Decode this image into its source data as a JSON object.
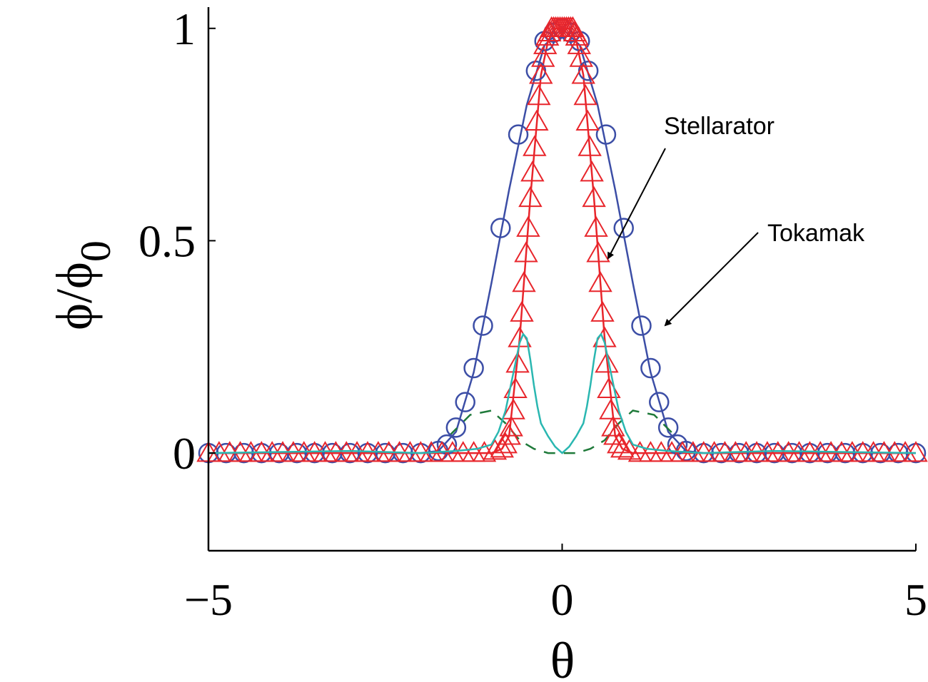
{
  "chart_data": {
    "type": "line",
    "xlabel": "θ",
    "ylabel": "ϕ/ϕ",
    "ylabel_subscript": "0",
    "xlim": [
      -5,
      5
    ],
    "ylim": [
      -0.23,
      1.05
    ],
    "xticks": [
      -5,
      0,
      5
    ],
    "xtick_labels": [
      "−5",
      "0",
      "5"
    ],
    "yticks": [
      0,
      0.5,
      1
    ],
    "ytick_labels": [
      "0",
      "0.5",
      "1"
    ],
    "grid": false,
    "colors": {
      "tokamak": "#3c4ea6",
      "stellarator": "#e8252b",
      "cyan": "#2ab7b1",
      "green_dashed": "#1f7a3a"
    },
    "series": [
      {
        "key": "tokamak_circles",
        "style": "circle-markers",
        "color": "#3c4ea6",
        "x": [
          -5,
          -4.75,
          -4.5,
          -4.25,
          -4,
          -3.75,
          -3.5,
          -3.25,
          -3,
          -2.75,
          -2.5,
          -2.25,
          -2,
          -1.75,
          -1.63,
          -1.5,
          -1.37,
          -1.25,
          -1.12,
          -0.87,
          -0.62,
          -0.37,
          -0.25,
          -0.12,
          0,
          0.12,
          0.25,
          0.37,
          0.62,
          0.87,
          1.12,
          1.25,
          1.37,
          1.5,
          1.63,
          1.75,
          2,
          2.25,
          2.5,
          2.75,
          3,
          3.25,
          3.5,
          3.75,
          4,
          4.25,
          4.5,
          4.75,
          5
        ],
        "y": [
          0,
          0,
          0,
          0,
          0,
          0,
          0,
          0,
          0,
          0,
          0,
          0,
          0,
          0.005,
          0.02,
          0.06,
          0.12,
          0.2,
          0.3,
          0.53,
          0.75,
          0.9,
          0.97,
          0.99,
          1.0,
          0.99,
          0.97,
          0.9,
          0.75,
          0.53,
          0.3,
          0.2,
          0.12,
          0.06,
          0.02,
          0.005,
          0,
          0,
          0,
          0,
          0,
          0,
          0,
          0,
          0,
          0,
          0,
          0,
          0
        ]
      },
      {
        "key": "tokamak_line",
        "style": "line",
        "color": "#3c4ea6",
        "x": [
          -5,
          -2,
          -1.75,
          -1.5,
          -1.25,
          -1,
          -0.75,
          -0.5,
          -0.25,
          0,
          0.25,
          0.5,
          0.75,
          1,
          1.25,
          1.5,
          1.75,
          2,
          5
        ],
        "y": [
          0,
          0,
          0.005,
          0.05,
          0.19,
          0.4,
          0.62,
          0.82,
          0.96,
          1.0,
          0.96,
          0.82,
          0.62,
          0.4,
          0.19,
          0.05,
          0.005,
          0,
          0
        ]
      },
      {
        "key": "stellarator_triangles",
        "style": "triangle-markers",
        "color": "#e8252b",
        "x": [
          -5,
          -4.85,
          -4.7,
          -4.55,
          -4.4,
          -4.25,
          -4.1,
          -3.95,
          -3.8,
          -3.65,
          -3.5,
          -3.35,
          -3.2,
          -3.05,
          -2.9,
          -2.75,
          -2.6,
          -2.45,
          -2.3,
          -2.15,
          -2.0,
          -1.85,
          -1.7,
          -1.55,
          -1.4,
          -1.25,
          -1.1,
          -0.95,
          -0.85,
          -0.8,
          -0.75,
          -0.72,
          -0.69,
          -0.66,
          -0.63,
          -0.6,
          -0.57,
          -0.54,
          -0.51,
          -0.48,
          -0.45,
          -0.42,
          -0.39,
          -0.36,
          -0.33,
          -0.3,
          -0.27,
          -0.24,
          -0.21,
          -0.18,
          -0.15,
          -0.12,
          -0.09,
          -0.06,
          -0.03,
          0,
          0.03,
          0.06,
          0.09,
          0.12,
          0.15,
          0.18,
          0.21,
          0.24,
          0.27,
          0.3,
          0.33,
          0.36,
          0.39,
          0.42,
          0.45,
          0.48,
          0.51,
          0.54,
          0.57,
          0.6,
          0.63,
          0.66,
          0.69,
          0.72,
          0.75,
          0.8,
          0.85,
          0.95,
          1.1,
          1.25,
          1.4,
          1.55,
          1.7,
          1.85,
          2.0,
          2.15,
          2.3,
          2.45,
          2.6,
          2.75,
          2.9,
          3.05,
          3.2,
          3.35,
          3.5,
          3.65,
          3.8,
          3.95,
          4.1,
          4.25,
          4.4,
          4.55,
          4.7,
          4.85,
          5
        ],
        "y": [
          0,
          0,
          0,
          0,
          0,
          0,
          0,
          0,
          0,
          0,
          0,
          0,
          0,
          0,
          0,
          0,
          0,
          0,
          0,
          0,
          0,
          0,
          0,
          0,
          0,
          0,
          0,
          0.005,
          0.01,
          0.02,
          0.04,
          0.06,
          0.1,
          0.15,
          0.21,
          0.27,
          0.33,
          0.4,
          0.47,
          0.53,
          0.6,
          0.66,
          0.72,
          0.78,
          0.84,
          0.89,
          0.93,
          0.96,
          0.98,
          0.99,
          1.0,
          1.0,
          1.0,
          1.0,
          1.0,
          1.0,
          1.0,
          1.0,
          1.0,
          1.0,
          1.0,
          0.99,
          0.98,
          0.96,
          0.93,
          0.89,
          0.84,
          0.78,
          0.72,
          0.66,
          0.6,
          0.53,
          0.47,
          0.4,
          0.33,
          0.27,
          0.21,
          0.15,
          0.1,
          0.06,
          0.04,
          0.02,
          0.01,
          0.005,
          0,
          0,
          0,
          0,
          0,
          0,
          0,
          0,
          0,
          0,
          0,
          0,
          0,
          0,
          0,
          0,
          0,
          0,
          0,
          0,
          0,
          0,
          0,
          0,
          0,
          0,
          0
        ]
      },
      {
        "key": "stellarator_line",
        "style": "line",
        "color": "#e8252b",
        "x": [
          -5,
          -1.0,
          -0.85,
          -0.75,
          -0.6,
          -0.45,
          -0.3,
          -0.2,
          -0.1,
          0,
          0.1,
          0.2,
          0.3,
          0.45,
          0.6,
          0.75,
          0.85,
          1.0,
          5
        ],
        "y": [
          0,
          0,
          0.01,
          0.04,
          0.27,
          0.6,
          0.89,
          0.97,
          1.0,
          1.0,
          1.0,
          0.97,
          0.89,
          0.6,
          0.27,
          0.04,
          0.01,
          0,
          0
        ]
      },
      {
        "key": "cyan_curve",
        "style": "line",
        "color": "#2ab7b1",
        "x": [
          -5,
          -3,
          -2,
          -1.5,
          -1.2,
          -1.0,
          -0.9,
          -0.8,
          -0.7,
          -0.6,
          -0.55,
          -0.5,
          -0.45,
          -0.4,
          -0.35,
          -0.3,
          -0.2,
          -0.1,
          0,
          0.1,
          0.2,
          0.3,
          0.35,
          0.4,
          0.45,
          0.5,
          0.55,
          0.6,
          0.7,
          0.8,
          0.9,
          1.0,
          1.2,
          1.5,
          2,
          3,
          5
        ],
        "y": [
          0,
          0.005,
          0.0,
          0.005,
          0.01,
          0.02,
          0.05,
          0.1,
          0.18,
          0.26,
          0.28,
          0.27,
          0.22,
          0.16,
          0.11,
          0.07,
          0.04,
          0.015,
          0.0,
          0.015,
          0.04,
          0.07,
          0.11,
          0.16,
          0.22,
          0.27,
          0.28,
          0.26,
          0.18,
          0.1,
          0.05,
          0.02,
          0.01,
          0.005,
          0.0,
          0.005,
          0
        ]
      },
      {
        "key": "green_dashed",
        "style": "dashed",
        "color": "#1f7a3a",
        "x": [
          -1.6,
          -1.3,
          -1.0,
          -0.8,
          -0.6,
          -0.4,
          -0.2,
          0,
          0.2,
          0.4,
          0.6,
          0.8,
          1.0,
          1.3,
          1.6
        ],
        "y": [
          0.04,
          0.09,
          0.1,
          0.07,
          0.03,
          0.01,
          0.0,
          0.0,
          0.0,
          0.01,
          0.03,
          0.07,
          0.1,
          0.09,
          0.04
        ]
      }
    ],
    "annotations": [
      {
        "text": "Stellarator",
        "point_x": 0.62,
        "point_y": 0.45
      },
      {
        "text": "Tokamak",
        "point_x": 1.43,
        "point_y": 0.29
      }
    ]
  }
}
